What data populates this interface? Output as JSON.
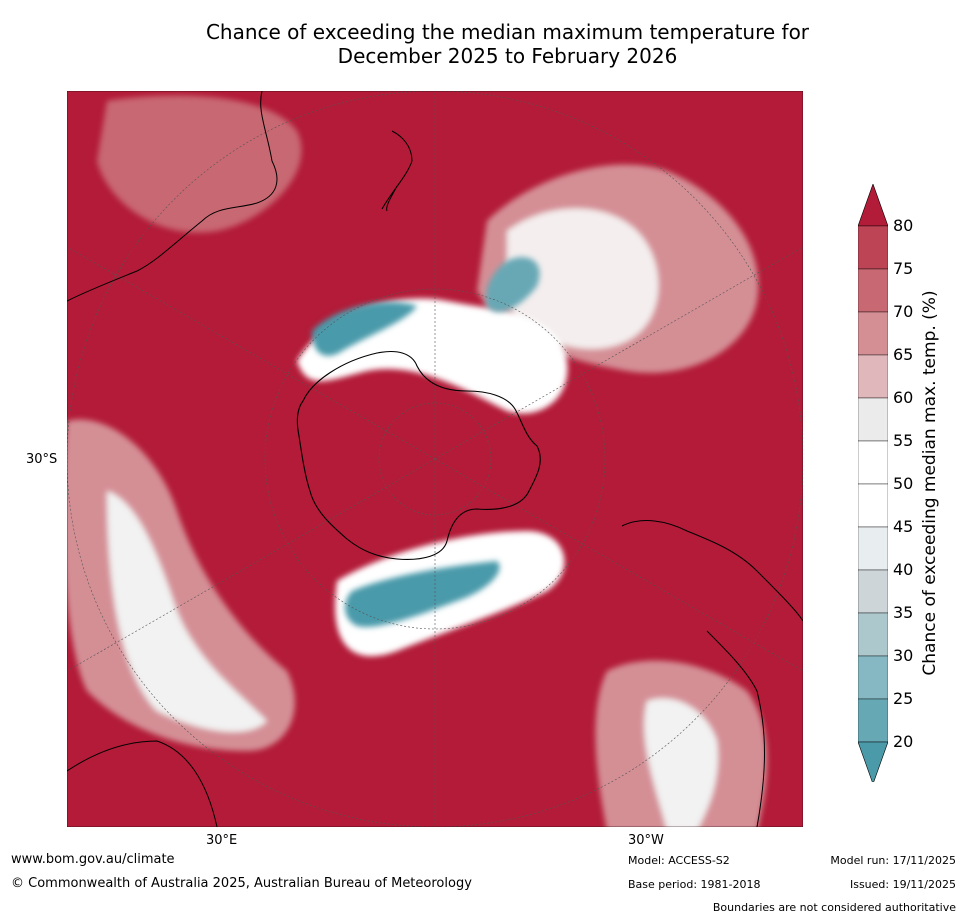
{
  "title": {
    "line1": "Chance of exceeding the median maximum temperature for",
    "line2": "December 2025 to February 2026"
  },
  "map": {
    "projection": "south-polar stereographic",
    "lat_label": "30°S",
    "lon_labels": [
      "30°E",
      "30°W"
    ],
    "colors": {
      "ocean_warm": "#b31b38",
      "land_line": "#000000",
      "grid_line": "#555555"
    }
  },
  "colorbar": {
    "label": "Chance of exceeding median max. temp. (%)",
    "ticks": [
      "80",
      "75",
      "70",
      "65",
      "60",
      "55",
      "50",
      "45",
      "40",
      "35",
      "30",
      "25",
      "20"
    ],
    "colors": [
      "#b21c38",
      "#bd4455",
      "#c86872",
      "#d48f95",
      "#e0b8bb",
      "#ebebeb",
      "#ffffff",
      "#ffffff",
      "#e8eef0",
      "#cdd5d9",
      "#adc8cd",
      "#85b8c3",
      "#67a8b5",
      "#4a9aaa"
    ]
  },
  "footer": {
    "website": "www.bom.gov.au/climate",
    "copyright": "© Commonwealth of Australia 2025, Australian Bureau of Meteorology",
    "model": "Model: ACCESS-S2",
    "base_period": "Base period: 1981-2018",
    "model_run": "Model run: 17/11/2025",
    "issued": "Issued: 19/11/2025",
    "disclaimer": "Boundaries are not considered authoritative"
  }
}
